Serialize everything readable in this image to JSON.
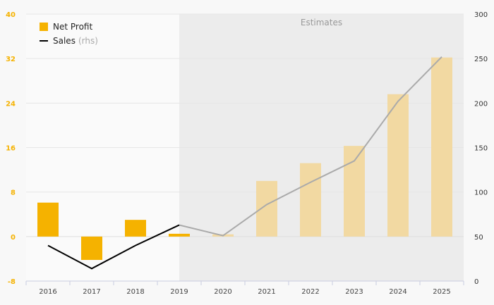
{
  "chart_data": {
    "type": "bar",
    "categories": [
      "2016",
      "2017",
      "2018",
      "2019",
      "2020",
      "2021",
      "2022",
      "2023",
      "2024",
      "2025"
    ],
    "series": [
      {
        "name": "Net Profit",
        "type": "bar",
        "axis": "left",
        "values": [
          6.1,
          -4.2,
          3.0,
          0.5,
          0.4,
          10.0,
          13.2,
          16.3,
          25.6,
          32.2
        ]
      },
      {
        "name": "Sales",
        "type": "line",
        "axis": "right",
        "values": [
          40,
          14,
          40,
          63,
          51,
          86,
          111,
          135,
          202,
          252
        ]
      }
    ],
    "estimates_label": "Estimates",
    "estimates_from": "2020",
    "y_left": {
      "min": -8,
      "max": 40,
      "ticks": [
        "-8",
        "0",
        "8",
        "16",
        "24",
        "32",
        "40"
      ]
    },
    "y_right": {
      "min": 0,
      "max": 300,
      "ticks": [
        "0",
        "50",
        "100",
        "150",
        "200",
        "250",
        "300"
      ]
    },
    "legend": {
      "bar_label": "Net Profit",
      "line_label": "Sales",
      "line_suffix": "(rhs)"
    },
    "colors": {
      "bar": "#f5b200",
      "bar_estimate": "#f2d9a2",
      "line": "#000000",
      "line_estimate": "#aaaaaa",
      "left_axis": "#f5b200",
      "estimate_bg": "#ececec"
    }
  }
}
